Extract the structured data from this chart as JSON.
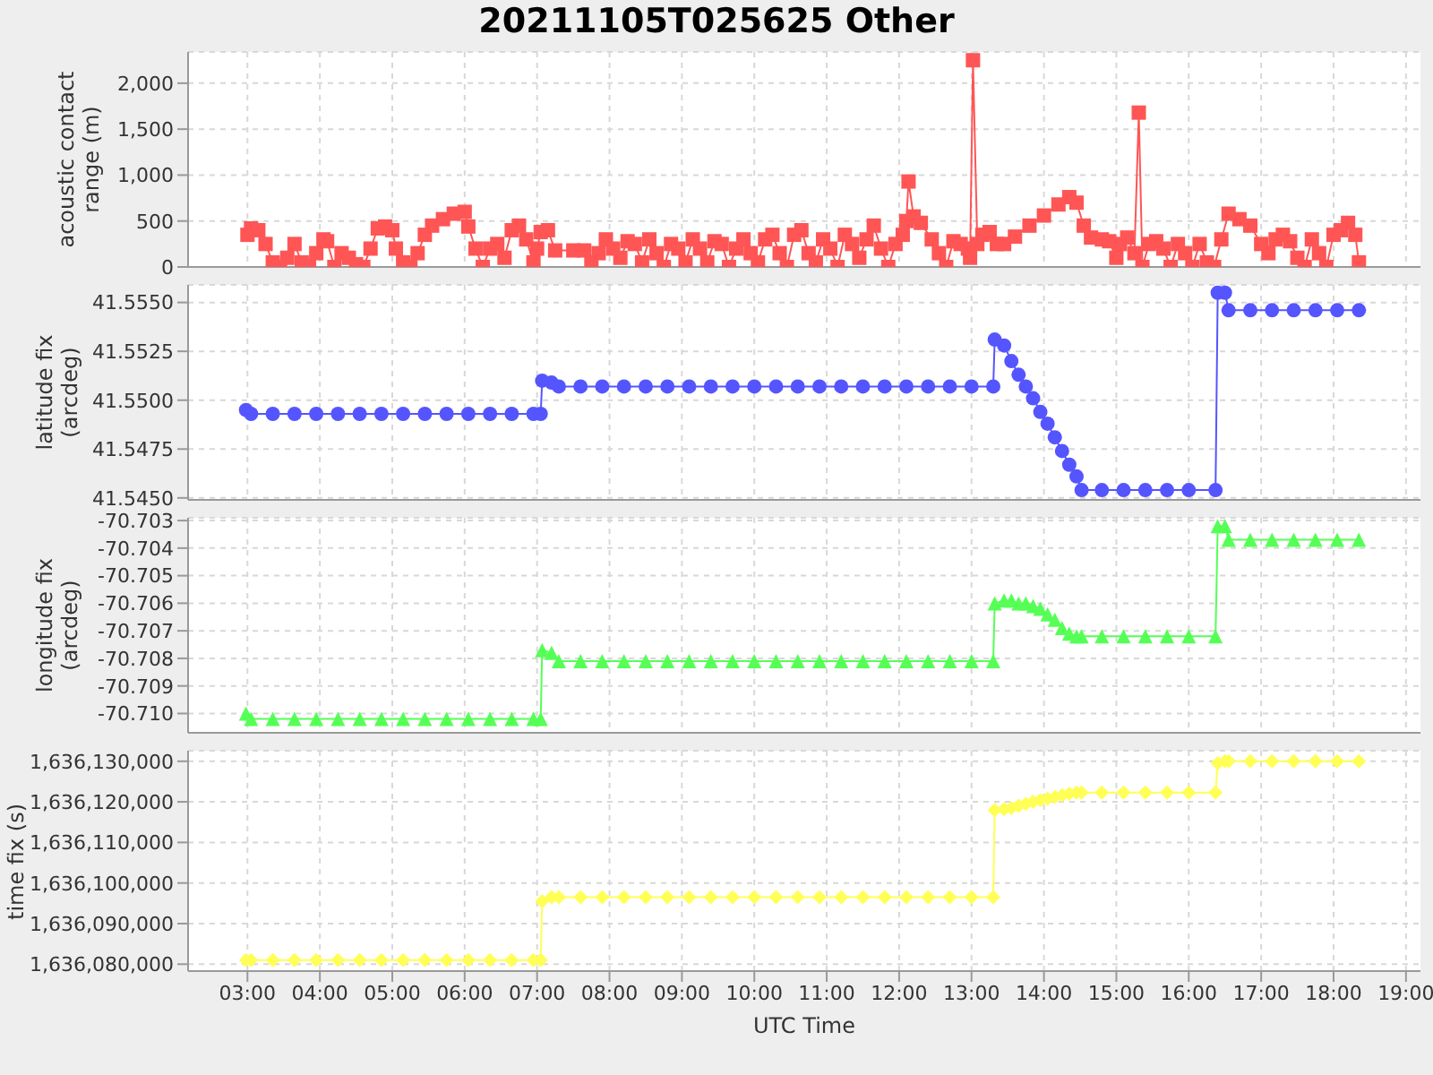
{
  "chart_data": [
    {
      "type": "line",
      "title": "20211105T025625 Other",
      "ylabel": "acoustic contact range (m)",
      "color": "#ff5555",
      "marker": "square",
      "grid": true,
      "tick_labels": "y",
      "xlim": [
        2.18,
        19.2
      ],
      "xticks": [
        3,
        4,
        5,
        6,
        7,
        8,
        9,
        10,
        11,
        12,
        13,
        14,
        15,
        16,
        17,
        18,
        19
      ],
      "ylim": [
        0,
        2340
      ],
      "yticks": [
        0,
        500,
        {
          "value": 1000,
          "label": "1,000"
        },
        {
          "value": 1500,
          "label": "1,500"
        },
        {
          "value": 2000,
          "label": "2,000"
        }
      ],
      "x": [
        3.0,
        3.05,
        3.15,
        3.25,
        3.35,
        3.45,
        3.55,
        3.65,
        3.75,
        3.85,
        3.95,
        4.05,
        4.1,
        4.2,
        4.3,
        4.4,
        4.5,
        4.6,
        4.7,
        4.8,
        4.9,
        5.0,
        5.05,
        5.15,
        5.25,
        5.35,
        5.45,
        5.55,
        5.7,
        5.85,
        6.0,
        6.05,
        6.15,
        6.25,
        6.35,
        6.45,
        6.55,
        6.65,
        6.75,
        6.85,
        6.95,
        7.0,
        7.05,
        7.15,
        7.25,
        7.5,
        7.65,
        7.75,
        7.85,
        7.95,
        8.05,
        8.15,
        8.25,
        8.35,
        8.45,
        8.55,
        8.65,
        8.75,
        8.85,
        8.95,
        9.05,
        9.15,
        9.25,
        9.35,
        9.45,
        9.55,
        9.65,
        9.75,
        9.85,
        9.95,
        10.05,
        10.15,
        10.25,
        10.35,
        10.45,
        10.55,
        10.65,
        10.75,
        10.85,
        10.95,
        11.05,
        11.15,
        11.25,
        11.35,
        11.45,
        11.55,
        11.65,
        11.75,
        11.85,
        11.95,
        12.05,
        12.1,
        12.13,
        12.2,
        12.3,
        12.45,
        12.55,
        12.65,
        12.75,
        12.85,
        12.95,
        12.98,
        13.02,
        13.08,
        13.15,
        13.25,
        13.35,
        13.45,
        13.6,
        13.8,
        14.0,
        14.2,
        14.35,
        14.45,
        14.55,
        14.65,
        14.8,
        14.9,
        15.0,
        15.05,
        15.15,
        15.25,
        15.31,
        15.36,
        15.45,
        15.55,
        15.65,
        15.75,
        15.85,
        15.95,
        16.05,
        16.15,
        16.25,
        16.35,
        16.45,
        16.55,
        16.7,
        16.85,
        17.0,
        17.1,
        17.2,
        17.3,
        17.4,
        17.5,
        17.6,
        17.7,
        17.8,
        17.9,
        18.0,
        18.1,
        18.2,
        18.3,
        18.35
      ],
      "values": [
        350,
        420,
        400,
        250,
        50,
        0,
        100,
        250,
        50,
        0,
        150,
        300,
        280,
        0,
        150,
        100,
        30,
        0,
        200,
        420,
        440,
        400,
        200,
        50,
        0,
        150,
        350,
        450,
        520,
        580,
        600,
        440,
        200,
        0,
        200,
        250,
        100,
        400,
        450,
        300,
        50,
        200,
        380,
        400,
        180,
        180,
        180,
        50,
        150,
        300,
        200,
        100,
        280,
        250,
        50,
        300,
        150,
        0,
        250,
        200,
        50,
        300,
        200,
        50,
        280,
        250,
        0,
        200,
        300,
        150,
        50,
        300,
        350,
        150,
        0,
        350,
        400,
        150,
        50,
        300,
        200,
        0,
        350,
        250,
        100,
        300,
        450,
        200,
        0,
        250,
        350,
        500,
        930,
        550,
        480,
        300,
        150,
        0,
        280,
        250,
        200,
        100,
        2250,
        250,
        350,
        380,
        250,
        250,
        330,
        450,
        560,
        680,
        760,
        700,
        450,
        320,
        300,
        280,
        100,
        250,
        320,
        150,
        1680,
        0,
        250,
        280,
        200,
        0,
        250,
        150,
        0,
        250,
        50,
        0,
        300,
        580,
        520,
        450,
        250,
        150,
        300,
        350,
        280,
        100,
        0,
        300,
        150,
        0,
        350,
        400,
        480,
        350,
        50
      ]
    },
    {
      "type": "line",
      "ylabel": "latitude fix (arcdeg)",
      "color": "#5555ff",
      "marker": "circle",
      "grid": true,
      "tick_labels": "y",
      "xlim": [
        2.18,
        19.2
      ],
      "xticks": [
        3,
        4,
        5,
        6,
        7,
        8,
        9,
        10,
        11,
        12,
        13,
        14,
        15,
        16,
        17,
        18,
        19
      ],
      "ylim": [
        41.5449,
        41.5559
      ],
      "yticks": [
        {
          "value": 41.545,
          "label": "41.5450"
        },
        {
          "value": 41.5475,
          "label": "41.5475"
        },
        {
          "value": 41.55,
          "label": "41.5500"
        },
        {
          "value": 41.5525,
          "label": "41.5525"
        },
        {
          "value": 41.555,
          "label": "41.5550"
        }
      ],
      "x": [
        2.98,
        3.05,
        3.35,
        3.65,
        3.95,
        4.25,
        4.55,
        4.85,
        5.15,
        5.45,
        5.75,
        6.05,
        6.35,
        6.65,
        6.95,
        7.05,
        7.07,
        7.2,
        7.3,
        7.6,
        7.9,
        8.2,
        8.5,
        8.8,
        9.1,
        9.4,
        9.7,
        10.0,
        10.3,
        10.6,
        10.9,
        11.2,
        11.5,
        11.8,
        12.1,
        12.4,
        12.7,
        13.0,
        13.3,
        13.32,
        13.45,
        13.55,
        13.65,
        13.75,
        13.85,
        13.95,
        14.05,
        14.15,
        14.25,
        14.35,
        14.45,
        14.52,
        14.8,
        15.1,
        15.4,
        15.7,
        16.0,
        16.37,
        16.4,
        16.5,
        16.55,
        16.85,
        17.15,
        17.45,
        17.75,
        18.05,
        18.35
      ],
      "values": [
        41.5495,
        41.5493,
        41.5493,
        41.5493,
        41.5493,
        41.5493,
        41.5493,
        41.5493,
        41.5493,
        41.5493,
        41.5493,
        41.5493,
        41.5493,
        41.5493,
        41.5493,
        41.5493,
        41.551,
        41.5509,
        41.5507,
        41.5507,
        41.5507,
        41.5507,
        41.5507,
        41.5507,
        41.5507,
        41.5507,
        41.5507,
        41.5507,
        41.5507,
        41.5507,
        41.5507,
        41.5507,
        41.5507,
        41.5507,
        41.5507,
        41.5507,
        41.5507,
        41.5507,
        41.5507,
        41.5531,
        41.5528,
        41.552,
        41.5513,
        41.5507,
        41.5501,
        41.5494,
        41.5488,
        41.5481,
        41.5474,
        41.5467,
        41.5461,
        41.5454,
        41.5454,
        41.5454,
        41.5454,
        41.5454,
        41.5454,
        41.5454,
        41.5555,
        41.5555,
        41.5546,
        41.5546,
        41.5546,
        41.5546,
        41.5546,
        41.5546,
        41.5546
      ]
    },
    {
      "type": "line",
      "ylabel": "longitude fix (arcdeg)",
      "color": "#55ff55",
      "marker": "triangle",
      "grid": true,
      "tick_labels": "y",
      "xlim": [
        2.18,
        19.2
      ],
      "xticks": [
        3,
        4,
        5,
        6,
        7,
        8,
        9,
        10,
        11,
        12,
        13,
        14,
        15,
        16,
        17,
        18,
        19
      ],
      "ylim": [
        -70.7107,
        -70.7029
      ],
      "yticks": [
        {
          "value": -70.71,
          "label": "-70.710"
        },
        -70.709,
        -70.708,
        -70.707,
        -70.706,
        -70.705,
        -70.704,
        -70.703
      ],
      "x": [
        2.98,
        3.05,
        3.35,
        3.65,
        3.95,
        4.25,
        4.55,
        4.85,
        5.15,
        5.45,
        5.75,
        6.05,
        6.35,
        6.65,
        6.95,
        7.05,
        7.07,
        7.2,
        7.3,
        7.6,
        7.9,
        8.2,
        8.5,
        8.8,
        9.1,
        9.4,
        9.7,
        10.0,
        10.3,
        10.6,
        10.9,
        11.2,
        11.5,
        11.8,
        12.1,
        12.4,
        12.7,
        13.0,
        13.3,
        13.32,
        13.45,
        13.55,
        13.65,
        13.75,
        13.85,
        13.95,
        14.05,
        14.15,
        14.25,
        14.35,
        14.45,
        14.52,
        14.8,
        15.1,
        15.4,
        15.7,
        16.0,
        16.37,
        16.4,
        16.5,
        16.55,
        16.85,
        17.15,
        17.45,
        17.75,
        18.05,
        18.35
      ],
      "values": [
        -70.71,
        -70.7102,
        -70.7102,
        -70.7102,
        -70.7102,
        -70.7102,
        -70.7102,
        -70.7102,
        -70.7102,
        -70.7102,
        -70.7102,
        -70.7102,
        -70.7102,
        -70.7102,
        -70.7102,
        -70.7102,
        -70.7077,
        -70.7078,
        -70.7081,
        -70.7081,
        -70.7081,
        -70.7081,
        -70.7081,
        -70.7081,
        -70.7081,
        -70.7081,
        -70.7081,
        -70.7081,
        -70.7081,
        -70.7081,
        -70.7081,
        -70.7081,
        -70.7081,
        -70.7081,
        -70.7081,
        -70.7081,
        -70.7081,
        -70.7081,
        -70.7081,
        -70.706,
        -70.7059,
        -70.7059,
        -70.706,
        -70.706,
        -70.7061,
        -70.7062,
        -70.7064,
        -70.7066,
        -70.7069,
        -70.7071,
        -70.7072,
        -70.7072,
        -70.7072,
        -70.7072,
        -70.7072,
        -70.7072,
        -70.7072,
        -70.7072,
        -70.7032,
        -70.7032,
        -70.7037,
        -70.7037,
        -70.7037,
        -70.7037,
        -70.7037,
        -70.7037,
        -70.7037
      ]
    },
    {
      "type": "line",
      "ylabel": "time fix (s)",
      "xlabel": "UTC Time",
      "color": "#ffff55",
      "marker": "diamond",
      "grid": true,
      "xlim": [
        2.18,
        19.2
      ],
      "xticks": [
        {
          "value": 3,
          "label": "03:00"
        },
        {
          "value": 4,
          "label": "04:00"
        },
        {
          "value": 5,
          "label": "05:00"
        },
        {
          "value": 6,
          "label": "06:00"
        },
        {
          "value": 7,
          "label": "07:00"
        },
        {
          "value": 8,
          "label": "08:00"
        },
        {
          "value": 9,
          "label": "09:00"
        },
        {
          "value": 10,
          "label": "10:00"
        },
        {
          "value": 11,
          "label": "11:00"
        },
        {
          "value": 12,
          "label": "12:00"
        },
        {
          "value": 13,
          "label": "13:00"
        },
        {
          "value": 14,
          "label": "14:00"
        },
        {
          "value": 15,
          "label": "15:00"
        },
        {
          "value": 16,
          "label": "16:00"
        },
        {
          "value": 17,
          "label": "17:00"
        },
        {
          "value": 18,
          "label": "18:00"
        },
        {
          "value": 19,
          "label": "19:00"
        }
      ],
      "ylim": [
        1636078300,
        1636132600
      ],
      "yticks": [
        {
          "value": 1636080000,
          "label": "1,636,080,000"
        },
        {
          "value": 1636090000,
          "label": "1,636,090,000"
        },
        {
          "value": 1636100000,
          "label": "1,636,100,000"
        },
        {
          "value": 1636110000,
          "label": "1,636,110,000"
        },
        {
          "value": 1636120000,
          "label": "1,636,120,000"
        },
        {
          "value": 1636130000,
          "label": "1,636,130,000"
        }
      ],
      "x": [
        2.98,
        3.05,
        3.35,
        3.65,
        3.95,
        4.25,
        4.55,
        4.85,
        5.15,
        5.45,
        5.75,
        6.05,
        6.35,
        6.65,
        6.95,
        7.05,
        7.07,
        7.2,
        7.3,
        7.6,
        7.9,
        8.2,
        8.5,
        8.8,
        9.1,
        9.4,
        9.7,
        10.0,
        10.3,
        10.6,
        10.9,
        11.2,
        11.5,
        11.8,
        12.1,
        12.4,
        12.7,
        13.0,
        13.3,
        13.32,
        13.45,
        13.55,
        13.65,
        13.75,
        13.85,
        13.95,
        14.05,
        14.15,
        14.25,
        14.35,
        14.45,
        14.52,
        14.8,
        15.1,
        15.4,
        15.7,
        16.0,
        16.37,
        16.4,
        16.5,
        16.55,
        16.85,
        17.15,
        17.45,
        17.75,
        18.05,
        18.35
      ],
      "values": [
        1636081000,
        1636081000,
        1636081000,
        1636081000,
        1636081000,
        1636081000,
        1636081000,
        1636081000,
        1636081000,
        1636081000,
        1636081000,
        1636081000,
        1636081000,
        1636081000,
        1636081000,
        1636081000,
        1636095500,
        1636096500,
        1636096500,
        1636096500,
        1636096500,
        1636096500,
        1636096500,
        1636096500,
        1636096500,
        1636096500,
        1636096500,
        1636096500,
        1636096500,
        1636096500,
        1636096500,
        1636096500,
        1636096500,
        1636096500,
        1636096500,
        1636096500,
        1636096500,
        1636096500,
        1636096500,
        1636118000,
        1636118200,
        1636118500,
        1636119000,
        1636119500,
        1636120000,
        1636120400,
        1636120800,
        1636121200,
        1636121600,
        1636122000,
        1636122300,
        1636122300,
        1636122300,
        1636122300,
        1636122300,
        1636122300,
        1636122300,
        1636122300,
        1636129500,
        1636130000,
        1636130000,
        1636130000,
        1636130000,
        1636130000,
        1636130000,
        1636130000,
        1636130000
      ]
    }
  ]
}
